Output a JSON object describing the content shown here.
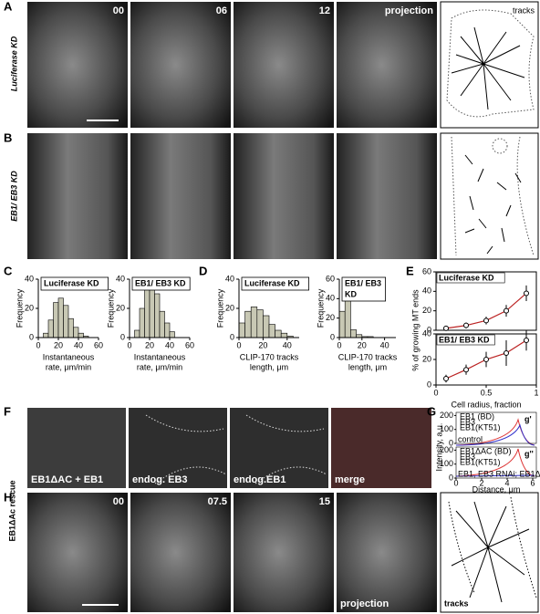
{
  "panels": {
    "A": {
      "label": "A",
      "side_label": "Luciferase KD",
      "frames": [
        "00",
        "06",
        "12",
        "projection"
      ],
      "tracks_label": "tracks"
    },
    "B": {
      "label": "B",
      "side_label": "EB1/ EB3 KD"
    },
    "C": {
      "label": "C",
      "charts": [
        {
          "type": "histogram",
          "legend": [
            "Luciferase KD"
          ],
          "ylabel": "Frequency",
          "xlabel": [
            "Instantaneous",
            "rate, μm/min"
          ],
          "bins": [
            5,
            10,
            15,
            20,
            25,
            30,
            35,
            40,
            45,
            50
          ],
          "counts": [
            3,
            12,
            24,
            27,
            22,
            13,
            7,
            3,
            1
          ],
          "xlim": [
            0,
            60
          ],
          "ylim": [
            0,
            40
          ],
          "xticks": [
            0,
            20,
            40,
            60
          ],
          "yticks": [
            0,
            20,
            40
          ],
          "color": "#c8c8b4"
        },
        {
          "type": "histogram",
          "legend": [
            "EB1/ EB3 KD"
          ],
          "ylabel": "Frequency",
          "xlabel": [
            "Instantaneous",
            "rate, μm/min"
          ],
          "bins": [
            5,
            10,
            15,
            20,
            25,
            30,
            35,
            40,
            45
          ],
          "counts": [
            5,
            20,
            35,
            38,
            30,
            18,
            10,
            4
          ],
          "xlim": [
            0,
            60
          ],
          "ylim": [
            0,
            40
          ],
          "xticks": [
            0,
            20,
            40,
            60
          ],
          "yticks": [
            0,
            20,
            40
          ],
          "color": "#c8c8b4"
        }
      ]
    },
    "D": {
      "label": "D",
      "charts": [
        {
          "type": "histogram",
          "legend": [
            "Luciferase KD"
          ],
          "ylabel": "Frequency",
          "xlabel": [
            "CLIP-170 tracks",
            "length, μm"
          ],
          "bins": [
            0,
            5,
            10,
            15,
            20,
            25,
            30,
            35,
            40,
            45
          ],
          "counts": [
            10,
            18,
            21,
            19,
            15,
            9,
            5,
            3,
            1
          ],
          "xlim": [
            0,
            50
          ],
          "ylim": [
            0,
            40
          ],
          "xticks": [
            0,
            20,
            40
          ],
          "yticks": [
            0,
            20,
            40
          ],
          "color": "#c8c8b4"
        },
        {
          "type": "histogram",
          "legend": [
            "EB1/ EB3",
            "KD"
          ],
          "ylabel": "Frequency",
          "xlabel": [
            "CLIP-170 tracks",
            "length, μm"
          ],
          "bins": [
            0,
            5,
            10,
            15,
            20,
            25,
            30
          ],
          "counts": [
            27,
            56,
            8,
            3,
            1,
            1
          ],
          "xlim": [
            0,
            50
          ],
          "ylim": [
            0,
            60
          ],
          "xticks": [
            0,
            20,
            40
          ],
          "yticks": [
            0,
            20,
            40,
            60
          ],
          "color": "#c8c8b4"
        }
      ]
    },
    "E": {
      "label": "E",
      "ylabel": "% of growing MT ends",
      "xlabel": "Cell radius, fraction",
      "charts": [
        {
          "type": "scatter",
          "legend": "Luciferase KD",
          "x": [
            0.1,
            0.3,
            0.5,
            0.7,
            0.9
          ],
          "y": [
            2,
            5,
            10,
            20,
            38
          ],
          "err": [
            2,
            3,
            4,
            6,
            8
          ],
          "xlim": [
            0,
            1
          ],
          "ylim": [
            0,
            60
          ],
          "yticks": [
            0,
            20,
            40,
            60
          ],
          "color": "#8b1a1a"
        },
        {
          "type": "scatter",
          "legend": "EB1/ EB3 KD",
          "x": [
            0.1,
            0.3,
            0.5,
            0.7,
            0.9
          ],
          "y": [
            5,
            12,
            20,
            25,
            35
          ],
          "err": [
            3,
            4,
            6,
            10,
            8
          ],
          "xlim": [
            0,
            1
          ],
          "ylim": [
            0,
            40
          ],
          "yticks": [
            0,
            20,
            40
          ],
          "xticks": [
            0,
            0.5,
            1
          ],
          "color": "#8b1a1a"
        }
      ]
    },
    "F": {
      "label": "F",
      "captions": [
        "EB1ΔAC + EB1",
        "endog. EB3",
        "endog.EB1",
        "merge"
      ]
    },
    "G": {
      "label": "G",
      "ylabel": "Intensity, a.u.",
      "xlabel": "Distance, μm",
      "plots": [
        {
          "tag": "g'",
          "note": "control",
          "legend": [
            "EB1 (BD)",
            "EB3",
            "EB1(KT51)"
          ],
          "yticks": [
            0,
            100,
            200
          ]
        },
        {
          "tag": "g''",
          "note": "EB1, EB3 RNAi; EB1ΔAc exp.",
          "legend": [
            "EB1ΔAC (BD)",
            "EB3",
            "EB1(KT51)"
          ],
          "yticks": [
            0,
            100,
            200
          ],
          "xticks": [
            0,
            2,
            4,
            6
          ]
        }
      ]
    },
    "H": {
      "label": "H",
      "side_label": "EB1ΔAc rescue",
      "frames": [
        "00",
        "07.5",
        "15"
      ],
      "projection_label": "projection",
      "tracks_label": "tracks"
    }
  }
}
